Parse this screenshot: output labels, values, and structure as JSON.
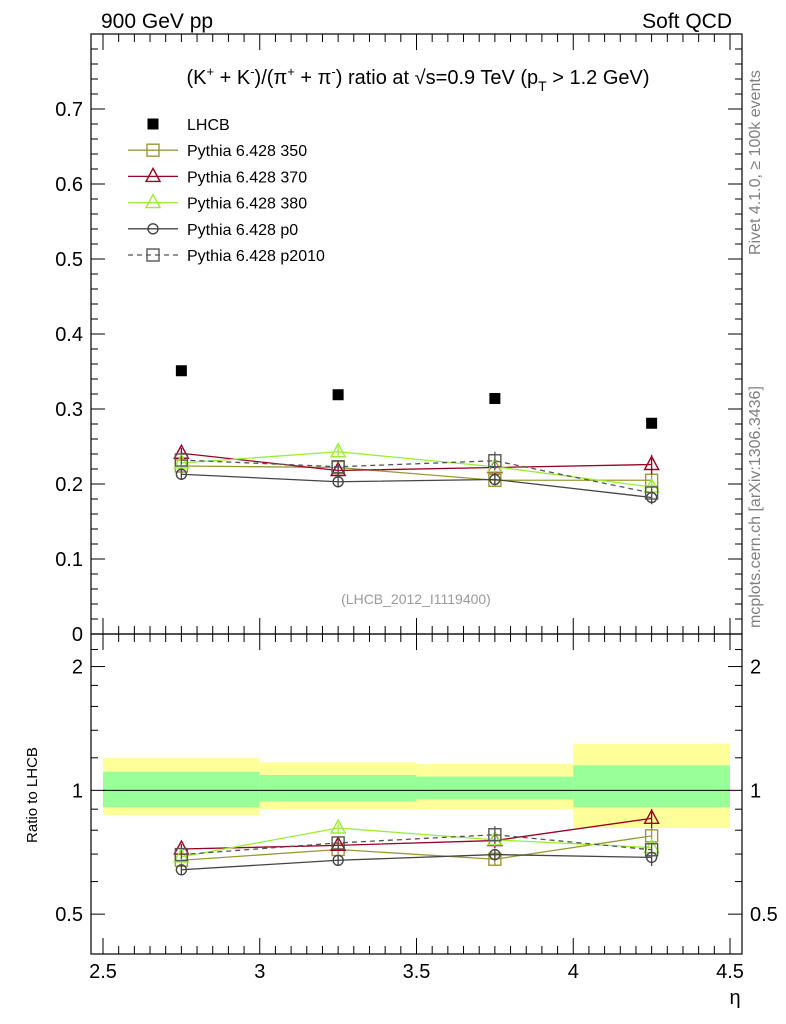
{
  "header": {
    "left": "900 GeV pp",
    "right": "Soft QCD"
  },
  "side_labels": {
    "upper": "Rivet 4.1.0, ≥ 100k events",
    "lower": "mcplots.cern.ch [arXiv:1306.3436]"
  },
  "chart_data": {
    "type": "scatter",
    "title": "(K⁺ + K⁻)/(π⁺ + π⁻) ratio at √s=0.9 TeV (p_T > 1.2 GeV)",
    "title_parts": {
      "main": "(K",
      "kp": "+",
      "plus1": " + K",
      "km": "-",
      "mid": ")/(π",
      "pip": "+",
      "plus2": " + π",
      "pim": "-",
      "tail": ") ratio at ",
      "sqrt": "√s",
      "energy": "=0.9 TeV (p",
      "sub_t": "T",
      "cut": " > 1.2 GeV)"
    },
    "analysis_id": "(LHCB_2012_I1119400)",
    "xlabel": "η",
    "ylabel_ratio": "Ratio to LHCB",
    "xlim": [
      2.5,
      4.5
    ],
    "ylim": [
      0,
      0.8
    ],
    "ratio_ylim": [
      0.4,
      2.4
    ],
    "ratio_log": true,
    "x_ticks": [
      2.5,
      3,
      3.5,
      4,
      4.5
    ],
    "x_tick_labels": [
      "2.5",
      "3",
      "3.5",
      "4",
      "4.5"
    ],
    "y_ticks": [
      0.1,
      0.2,
      0.3,
      0.4,
      0.5,
      0.6,
      0.7
    ],
    "y_tick_labels": [
      "0.1",
      "0.2",
      "0.3",
      "0.4",
      "0.5",
      "0.6",
      "0.7"
    ],
    "y_zero_label": "0",
    "ratio_y_ticks": [
      0.5,
      1,
      2
    ],
    "ratio_y_tick_labels": [
      "0.5",
      "1",
      "2"
    ],
    "bins": [
      [
        2.5,
        3.0
      ],
      [
        3.0,
        3.5
      ],
      [
        3.5,
        4.0
      ],
      [
        4.0,
        4.5
      ]
    ],
    "x": [
      2.75,
      3.25,
      3.75,
      4.25
    ],
    "data": {
      "name": "LHCB",
      "values": [
        0.351,
        0.319,
        0.314,
        0.281
      ],
      "ratio_band_inner": [
        [
          0.91,
          1.11
        ],
        [
          0.94,
          1.09
        ],
        [
          0.95,
          1.08
        ],
        [
          0.91,
          1.15
        ]
      ],
      "ratio_band_outer": [
        [
          0.87,
          1.2
        ],
        [
          0.9,
          1.17
        ],
        [
          0.9,
          1.16
        ],
        [
          0.81,
          1.3
        ]
      ]
    },
    "series": [
      {
        "name": "Pythia 6.428 350",
        "color": "#999933",
        "marker": "square-open",
        "dash": "solid",
        "values": [
          0.224,
          0.222,
          0.205,
          0.205
        ],
        "errors": [
          0.006,
          0.006,
          0.008,
          0.01
        ],
        "ratio": [
          0.676,
          0.718,
          0.68,
          0.775
        ]
      },
      {
        "name": "Pythia 6.428 370",
        "color": "#990022",
        "marker": "triangle-open",
        "dash": "solid",
        "values": [
          0.241,
          0.218,
          0.222,
          0.226
        ],
        "errors": [
          0.007,
          0.007,
          0.01,
          0.013
        ],
        "ratio": [
          0.72,
          0.735,
          0.755,
          0.855
        ]
      },
      {
        "name": "Pythia 6.428 380",
        "color": "#99ee33",
        "marker": "triangle-open",
        "dash": "solid",
        "values": [
          0.228,
          0.243,
          0.223,
          0.196
        ],
        "errors": [
          0.006,
          0.007,
          0.008,
          0.009
        ],
        "ratio": [
          0.689,
          0.81,
          0.758,
          0.726
        ]
      },
      {
        "name": "Pythia 6.428 p0",
        "color": "#444444",
        "marker": "circle-open",
        "dash": "solid",
        "values": [
          0.213,
          0.203,
          0.206,
          0.182
        ],
        "errors": [
          0.006,
          0.006,
          0.007,
          0.009
        ],
        "ratio": [
          0.641,
          0.676,
          0.698,
          0.687
        ]
      },
      {
        "name": "Pythia 6.428 p2010",
        "color": "#555555",
        "marker": "square-open",
        "dash": "dashed",
        "values": [
          0.232,
          0.223,
          0.231,
          0.188
        ],
        "errors": [
          0.006,
          0.006,
          0.012,
          0.008
        ],
        "ratio": [
          0.698,
          0.745,
          0.78,
          0.717
        ]
      }
    ]
  }
}
